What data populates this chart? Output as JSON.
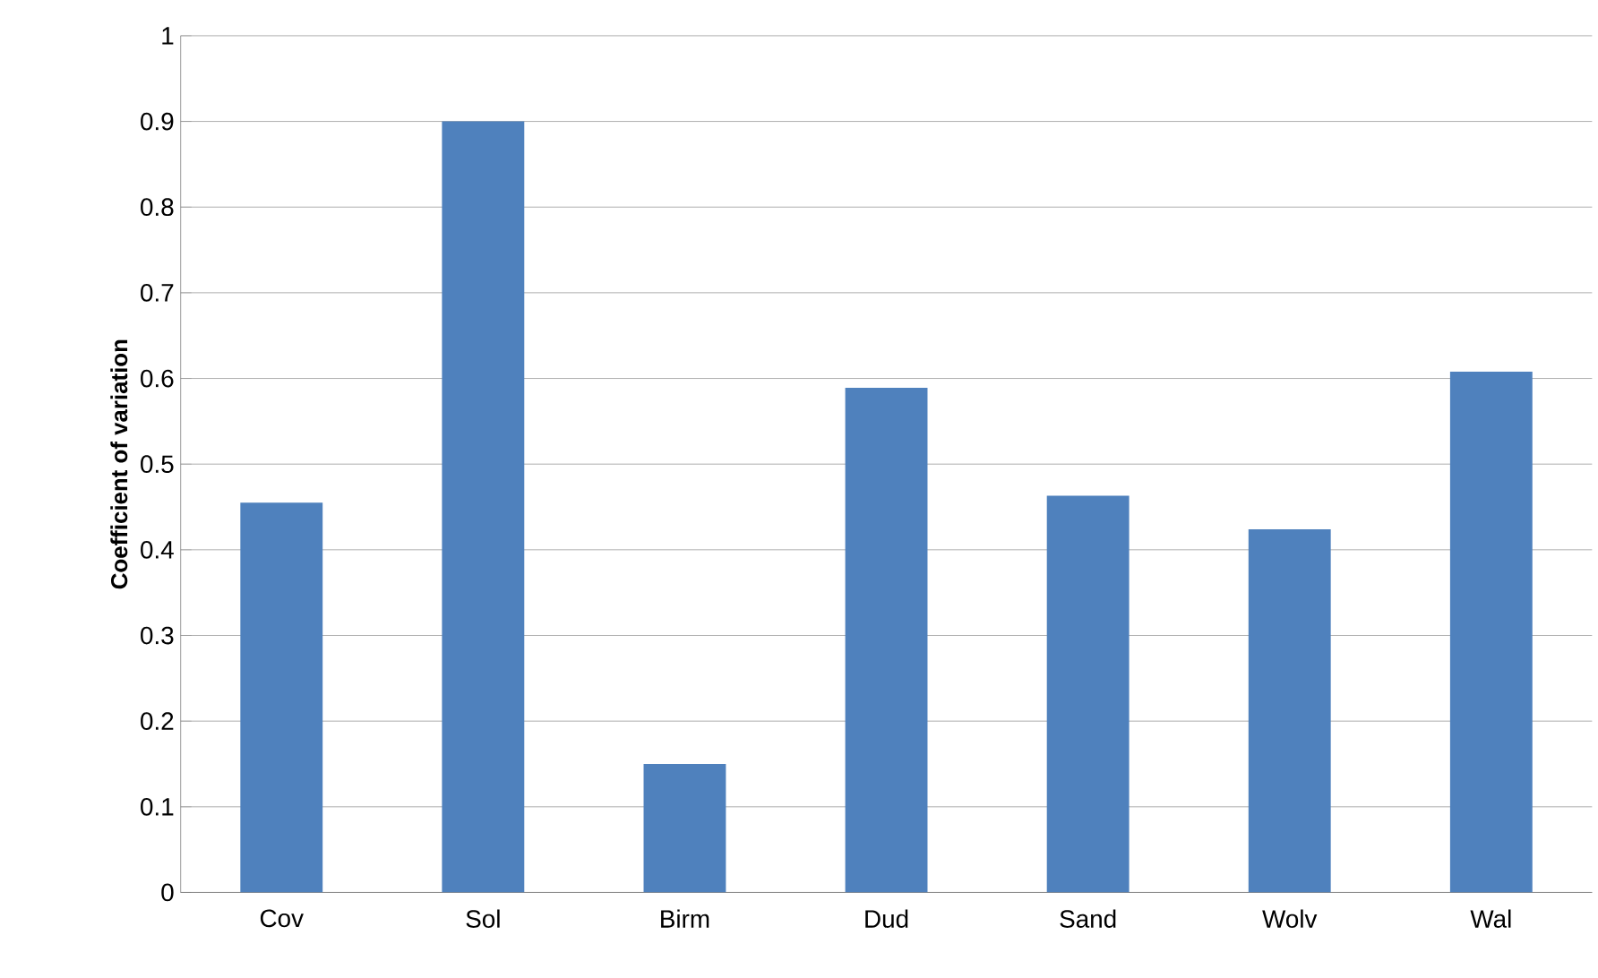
{
  "chart_data": {
    "type": "bar",
    "ylabel": "Coefficient of variation",
    "categories": [
      "Cov",
      "Sol",
      "Birm",
      "Dud",
      "Sand",
      "Wolv",
      "Wal"
    ],
    "values": [
      0.455,
      0.9,
      0.15,
      0.589,
      0.463,
      0.424,
      0.608
    ],
    "color": "#4f81bd",
    "ylim": [
      0,
      1
    ],
    "yticks": [
      0,
      0.1,
      0.2,
      0.3,
      0.4,
      0.5,
      0.6,
      0.7,
      0.8,
      0.9,
      1
    ],
    "grid": "y"
  }
}
